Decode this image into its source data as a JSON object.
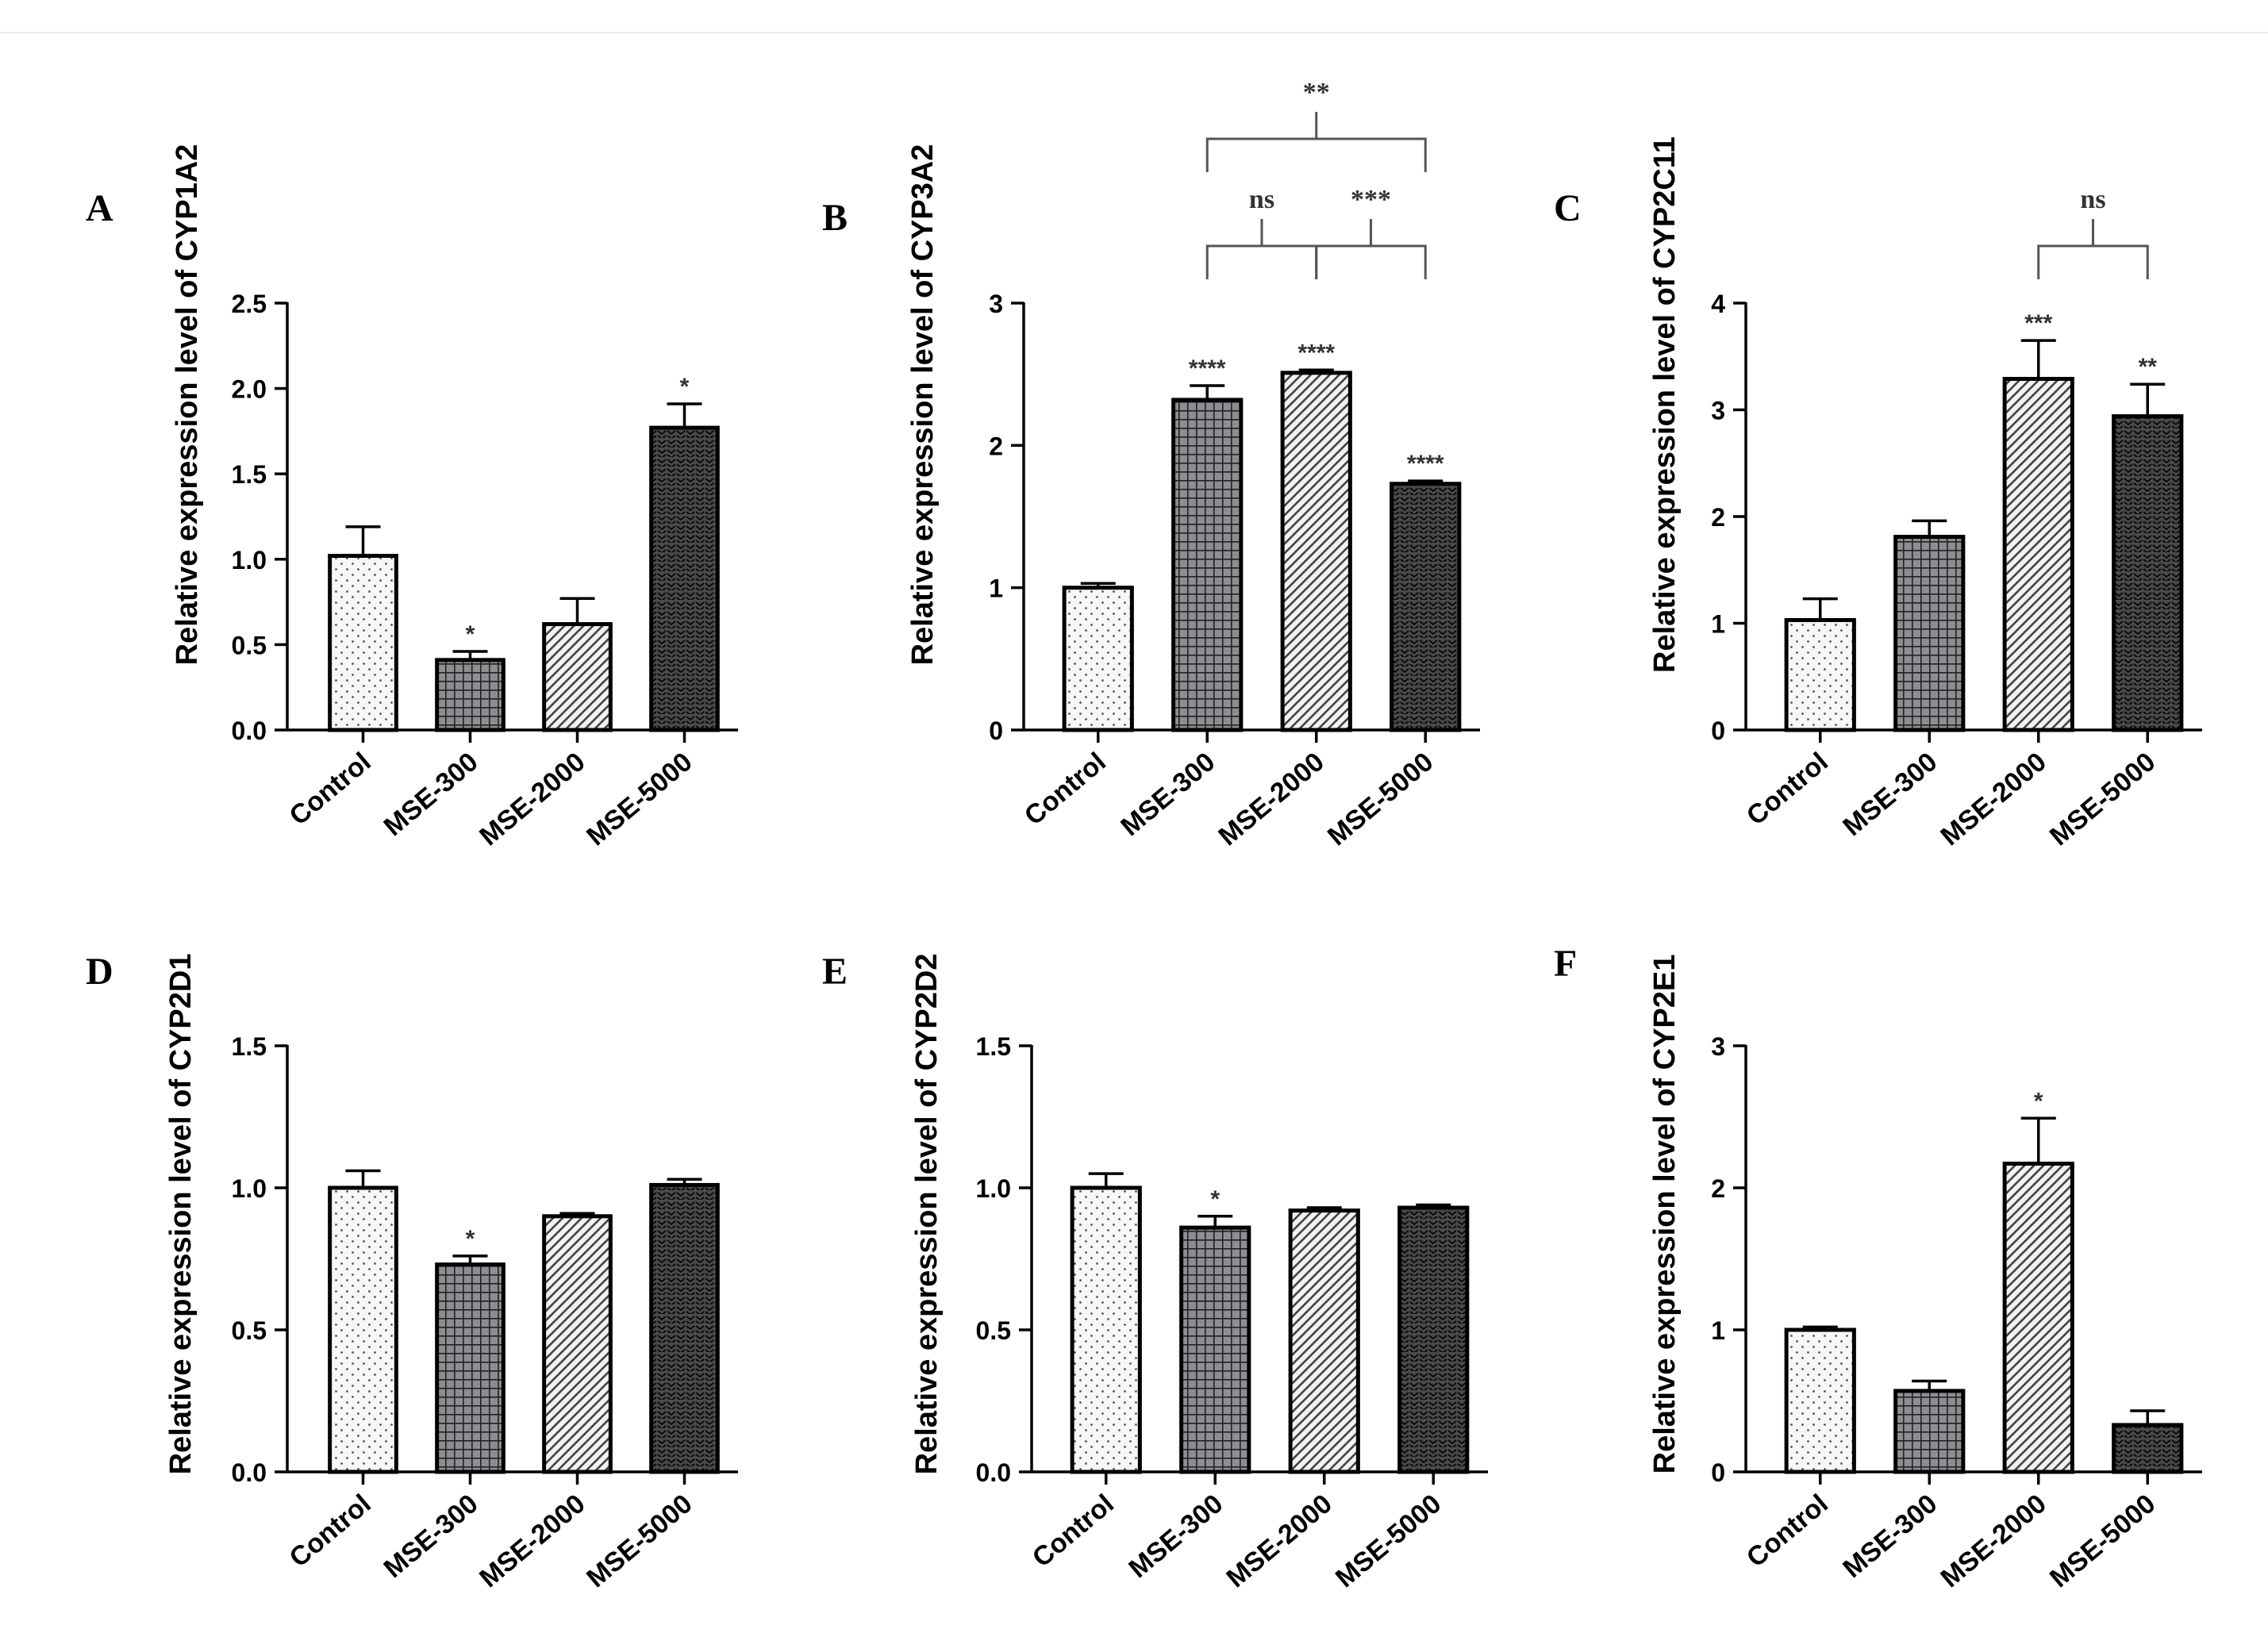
{
  "figure": {
    "title": ""
  },
  "chart_data": [
    {
      "panel_label": "A",
      "type": "bar",
      "categories": [
        "Control",
        "MSE-300",
        "MSE-2000",
        "MSE-5000"
      ],
      "values": [
        1.02,
        0.41,
        0.62,
        1.77
      ],
      "errors": [
        0.17,
        0.05,
        0.15,
        0.14
      ],
      "bar_labels": [
        "",
        "*",
        "",
        "*"
      ],
      "ylabel": "Relative expression level of CYP1A2",
      "xlabel": "",
      "ylim": [
        0,
        2.5
      ],
      "yticks": [
        0,
        0.5,
        1.0,
        1.5,
        2.0,
        2.5
      ],
      "ytick_labels": [
        "0.0",
        "0.5",
        "1.0",
        "1.5",
        "2.0",
        "2.5"
      ],
      "comparisons": []
    },
    {
      "panel_label": "B",
      "type": "bar",
      "categories": [
        "Control",
        "MSE-300",
        "MSE-2000",
        "MSE-5000"
      ],
      "values": [
        1.0,
        2.32,
        2.51,
        1.73
      ],
      "errors": [
        0.03,
        0.1,
        0.02,
        0.02
      ],
      "bar_labels": [
        "",
        "****",
        "****",
        "****"
      ],
      "ylabel": "Relative expression level of CYP3A2",
      "xlabel": "",
      "ylim": [
        0,
        3
      ],
      "yticks": [
        0,
        1,
        2,
        3
      ],
      "ytick_labels": [
        "0",
        "1",
        "2",
        "3"
      ],
      "comparisons": [
        {
          "from": 1,
          "to": 2,
          "label": "ns",
          "level": 0
        },
        {
          "from": 2,
          "to": 3,
          "label": "***",
          "level": 0
        },
        {
          "from": 1,
          "to": 3,
          "label": "**",
          "level": 1
        }
      ]
    },
    {
      "panel_label": "C",
      "type": "bar",
      "categories": [
        "Control",
        "MSE-300",
        "MSE-2000",
        "MSE-5000"
      ],
      "values": [
        1.03,
        1.81,
        3.29,
        2.94
      ],
      "errors": [
        0.2,
        0.15,
        0.36,
        0.3
      ],
      "bar_labels": [
        "",
        "",
        "***",
        "**"
      ],
      "ylabel": "Relative expression level of CYP2C11",
      "xlabel": "",
      "ylim": [
        0,
        4
      ],
      "yticks": [
        0,
        1,
        2,
        3,
        4
      ],
      "ytick_labels": [
        "0",
        "1",
        "2",
        "3",
        "4"
      ],
      "comparisons": [
        {
          "from": 2,
          "to": 3,
          "label": "ns",
          "level": 0
        }
      ]
    },
    {
      "panel_label": "D",
      "type": "bar",
      "categories": [
        "Control",
        "MSE-300",
        "MSE-2000",
        "MSE-5000"
      ],
      "values": [
        1.0,
        0.73,
        0.9,
        1.01
      ],
      "errors": [
        0.06,
        0.03,
        0.01,
        0.02
      ],
      "bar_labels": [
        "",
        "*",
        "",
        ""
      ],
      "ylabel": "Relative expression level of CYP2D1",
      "xlabel": "",
      "ylim": [
        0,
        1.5
      ],
      "yticks": [
        0,
        0.5,
        1.0,
        1.5
      ],
      "ytick_labels": [
        "0.0",
        "0.5",
        "1.0",
        "1.5"
      ],
      "comparisons": []
    },
    {
      "panel_label": "E",
      "type": "bar",
      "categories": [
        "Control",
        "MSE-300",
        "MSE-2000",
        "MSE-5000"
      ],
      "values": [
        1.0,
        0.86,
        0.92,
        0.93
      ],
      "errors": [
        0.05,
        0.04,
        0.01,
        0.01
      ],
      "bar_labels": [
        "",
        "*",
        "",
        ""
      ],
      "ylabel": "Relative expression level of CYP2D2",
      "xlabel": "",
      "ylim": [
        0,
        1.5
      ],
      "yticks": [
        0,
        0.5,
        1.0,
        1.5
      ],
      "ytick_labels": [
        "0.0",
        "0.5",
        "1.0",
        "1.5"
      ],
      "comparisons": []
    },
    {
      "panel_label": "F",
      "type": "bar",
      "categories": [
        "Control",
        "MSE-300",
        "MSE-2000",
        "MSE-5000"
      ],
      "values": [
        1.0,
        0.57,
        2.17,
        0.33
      ],
      "errors": [
        0.02,
        0.07,
        0.32,
        0.1
      ],
      "bar_labels": [
        "",
        "",
        "*",
        ""
      ],
      "ylabel": "Relative expression level of CYP2E1",
      "xlabel": "",
      "ylim": [
        0,
        3
      ],
      "yticks": [
        0,
        1,
        2,
        3
      ],
      "ytick_labels": [
        "0",
        "1",
        "2",
        "3"
      ],
      "comparisons": []
    }
  ],
  "style": {
    "bar_fill": [
      "#f7f7f7",
      "#8e8e92",
      "#c9c9c9",
      "#4a4a4a"
    ],
    "bar_pattern": [
      "dots",
      "grid",
      "diagonal",
      "chevron"
    ],
    "ink": "#000000",
    "bracket_color": "#555555",
    "sig_color": "#333333"
  }
}
